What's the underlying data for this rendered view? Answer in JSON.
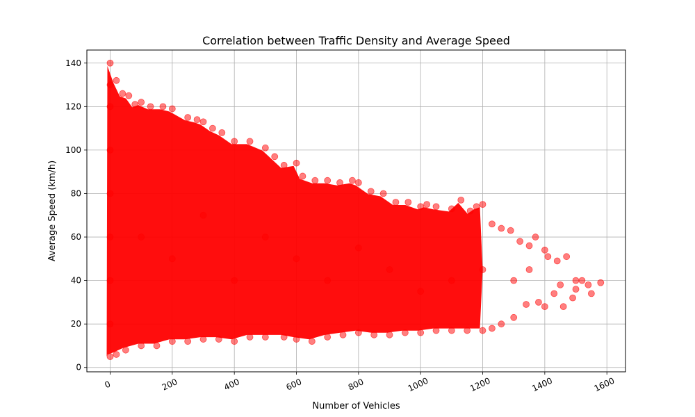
{
  "chart_data": {
    "type": "scatter",
    "title": "Correlation between Traffic Density and Average Speed",
    "xlabel": "Number of Vehicles",
    "ylabel": "Average Speed (km/h)",
    "xlim": [
      -75,
      1660
    ],
    "ylim": [
      -2,
      146
    ],
    "x_ticks": [
      0,
      200,
      400,
      600,
      800,
      1000,
      1200,
      1400,
      1600
    ],
    "y_ticks": [
      0,
      20,
      40,
      60,
      80,
      100,
      120,
      140
    ],
    "x_tick_labels": [
      "0",
      "200",
      "400",
      "600",
      "800",
      "1000",
      "1200",
      "1400",
      "1600"
    ],
    "y_tick_labels": [
      "0",
      "20",
      "40",
      "60",
      "80",
      "100",
      "120",
      "140"
    ],
    "grid": true,
    "marker_color": "#ff0000",
    "marker_alpha": 0.5,
    "series": [
      {
        "points": [
          [
            0,
            140
          ],
          [
            0,
            130
          ],
          [
            0,
            120
          ],
          [
            0,
            100
          ],
          [
            0,
            80
          ],
          [
            0,
            60
          ],
          [
            0,
            40
          ],
          [
            0,
            20
          ],
          [
            0,
            5
          ],
          [
            20,
            132
          ],
          [
            40,
            126
          ],
          [
            60,
            125
          ],
          [
            80,
            121
          ],
          [
            100,
            122
          ],
          [
            130,
            120
          ],
          [
            170,
            120
          ],
          [
            200,
            119
          ],
          [
            250,
            115
          ],
          [
            280,
            114
          ],
          [
            300,
            113
          ],
          [
            330,
            110
          ],
          [
            360,
            108
          ],
          [
            400,
            104
          ],
          [
            450,
            104
          ],
          [
            500,
            101
          ],
          [
            530,
            97
          ],
          [
            560,
            93
          ],
          [
            600,
            94
          ],
          [
            620,
            88
          ],
          [
            660,
            86
          ],
          [
            700,
            86
          ],
          [
            740,
            85
          ],
          [
            780,
            86
          ],
          [
            800,
            85
          ],
          [
            840,
            81
          ],
          [
            880,
            80
          ],
          [
            920,
            76
          ],
          [
            960,
            76
          ],
          [
            1000,
            74
          ],
          [
            1020,
            75
          ],
          [
            1050,
            74
          ],
          [
            1100,
            73
          ],
          [
            1130,
            77
          ],
          [
            1160,
            72
          ],
          [
            1180,
            74
          ],
          [
            1200,
            75
          ],
          [
            1230,
            66
          ],
          [
            1260,
            64
          ],
          [
            1290,
            63
          ],
          [
            1320,
            58
          ],
          [
            1350,
            56
          ],
          [
            1370,
            60
          ],
          [
            1400,
            54
          ],
          [
            1410,
            51
          ],
          [
            1440,
            49
          ],
          [
            1470,
            51
          ],
          [
            1500,
            40
          ],
          [
            1520,
            40
          ],
          [
            1540,
            38
          ],
          [
            1550,
            34
          ],
          [
            1580,
            39
          ],
          [
            1490,
            32
          ],
          [
            1460,
            28
          ],
          [
            1430,
            34
          ],
          [
            1400,
            28
          ],
          [
            1380,
            30
          ],
          [
            1340,
            29
          ],
          [
            1300,
            23
          ],
          [
            1260,
            20
          ],
          [
            1230,
            18
          ],
          [
            1200,
            17
          ],
          [
            1150,
            17
          ],
          [
            1100,
            17
          ],
          [
            1050,
            17
          ],
          [
            1000,
            16
          ],
          [
            950,
            16
          ],
          [
            900,
            15
          ],
          [
            850,
            15
          ],
          [
            800,
            16
          ],
          [
            750,
            15
          ],
          [
            700,
            14
          ],
          [
            650,
            12
          ],
          [
            600,
            13
          ],
          [
            560,
            14
          ],
          [
            500,
            14
          ],
          [
            450,
            14
          ],
          [
            400,
            12
          ],
          [
            350,
            13
          ],
          [
            300,
            13
          ],
          [
            250,
            12
          ],
          [
            200,
            12
          ],
          [
            150,
            10
          ],
          [
            100,
            10
          ],
          [
            50,
            8
          ],
          [
            20,
            6
          ],
          [
            100,
            60
          ],
          [
            200,
            50
          ],
          [
            300,
            70
          ],
          [
            400,
            40
          ],
          [
            500,
            60
          ],
          [
            600,
            50
          ],
          [
            700,
            40
          ],
          [
            800,
            55
          ],
          [
            900,
            45
          ],
          [
            1000,
            35
          ],
          [
            1100,
            40
          ],
          [
            1200,
            45
          ],
          [
            1300,
            40
          ],
          [
            1350,
            45
          ],
          [
            1450,
            38
          ],
          [
            1500,
            36
          ]
        ]
      }
    ]
  }
}
